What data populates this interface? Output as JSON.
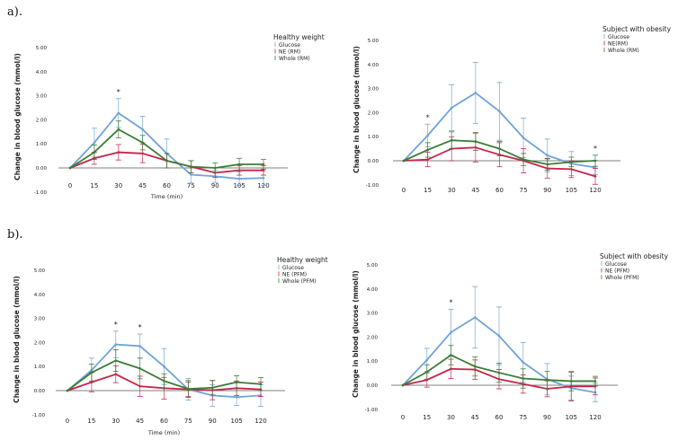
{
  "panel_labels": [
    "a).",
    "b)."
  ],
  "colors": {
    "Glucose": "#6fa3d8",
    "NE": "#c8234a",
    "Whole": "#3a7d32",
    "axis": "#555555"
  },
  "chart_data": [
    {
      "type": "line",
      "legend_title": "Healthy weight",
      "legend_placement": "top-right",
      "xlabel": "Time (min)",
      "ylabel": "Change in blood glucose (mmol/l)",
      "x": [
        0,
        15,
        30,
        45,
        60,
        75,
        90,
        105,
        120
      ],
      "x_tick_labels": [
        "0",
        "15",
        "30",
        "45",
        "60",
        "75",
        "90",
        "105",
        "120"
      ],
      "y_tick_labels": [
        "5.00",
        "4.00",
        "3.00",
        "2.00",
        "1.00",
        "0.00",
        "-1.00"
      ],
      "ylim": [
        -1,
        5
      ],
      "grid": false,
      "asterisks_at": [
        30
      ],
      "asterisk": "*",
      "series": [
        {
          "name": "Glucose",
          "color_key": "Glucose",
          "values": [
            0,
            1.05,
            2.28,
            1.6,
            0.6,
            -0.28,
            -0.35,
            -0.45,
            -0.42
          ],
          "error": [
            0,
            0.6,
            0.6,
            0.55,
            0.6,
            0.35,
            0.25,
            0.28,
            0.3
          ]
        },
        {
          "name": "NE (RM)",
          "color_key": "NE",
          "values": [
            0,
            0.4,
            0.65,
            0.6,
            0.3,
            0.05,
            -0.2,
            -0.1,
            -0.1
          ],
          "error": [
            0,
            0.25,
            0.32,
            0.38,
            0.3,
            0.25,
            0.2,
            0.2,
            0.2
          ]
        },
        {
          "name": "Whole (RM)",
          "color_key": "Whole",
          "values": [
            0,
            0.65,
            1.6,
            1.05,
            0.3,
            0.05,
            0,
            0.15,
            0.15
          ],
          "error": [
            0,
            0.3,
            0.35,
            0.3,
            0.3,
            0.25,
            0.2,
            0.25,
            0.2
          ]
        }
      ]
    },
    {
      "type": "line",
      "legend_title": "Subject with obesity",
      "legend_placement": "top-right",
      "xlabel": "",
      "ylabel": "Change in blood glucose (mmol/l)",
      "x": [
        0,
        15,
        30,
        45,
        60,
        75,
        90,
        105,
        120
      ],
      "x_tick_labels": [
        "0",
        "15",
        "30",
        "45",
        "60",
        "75",
        "90",
        "105",
        "120"
      ],
      "y_tick_labels": [
        "5.00",
        "4.00",
        "3.00",
        "2.00",
        "1.00",
        "0.00",
        "-1.00"
      ],
      "ylim": [
        -1,
        5
      ],
      "grid": false,
      "asterisks_at": [
        15,
        120
      ],
      "asterisk": "*",
      "series": [
        {
          "name": "Glucose",
          "color_key": "Glucose",
          "values": [
            0,
            1.05,
            2.2,
            2.82,
            2.05,
            0.95,
            0.22,
            -0.12,
            -0.28
          ],
          "error": [
            0,
            0.47,
            0.95,
            1.27,
            1.2,
            0.82,
            0.68,
            0.5,
            0.3
          ]
        },
        {
          "name": "NE(RM)",
          "color_key": "NE",
          "values": [
            0,
            0.05,
            0.5,
            0.55,
            0.25,
            0,
            -0.32,
            -0.35,
            -0.65
          ],
          "error": [
            0,
            0.3,
            0.5,
            0.6,
            0.5,
            0.5,
            0.4,
            0.35,
            0.33
          ]
        },
        {
          "name": "Whole (RM)",
          "color_key": "Whole",
          "values": [
            0,
            0.45,
            0.85,
            0.8,
            0.5,
            0.05,
            -0.15,
            -0.05,
            0
          ],
          "error": [
            0,
            0.3,
            0.35,
            0.37,
            0.3,
            0.25,
            0.25,
            0.2,
            0.23
          ]
        }
      ]
    },
    {
      "type": "line",
      "legend_title": "Healthy weight",
      "legend_placement": "top-right",
      "xlabel": "Time (min)",
      "ylabel": "Change in blood glucose (mmol/l)",
      "x": [
        0,
        15,
        30,
        45,
        60,
        75,
        90,
        105,
        120
      ],
      "x_tick_labels": [
        "0",
        "15",
        "30",
        "45",
        "60",
        "75",
        "90",
        "105",
        "120"
      ],
      "y_tick_labels": [
        "5.00",
        "4.00",
        "3.00",
        "2.00",
        "1.00",
        "0.00",
        "-1.00"
      ],
      "ylim": [
        -1,
        5
      ],
      "grid": false,
      "asterisks_at": [
        30,
        45
      ],
      "asterisk": "*",
      "series": [
        {
          "name": "Glucose",
          "color_key": "Glucose",
          "values": [
            0,
            0.85,
            1.92,
            1.85,
            1.0,
            0.05,
            -0.2,
            -0.27,
            -0.2
          ],
          "error": [
            0,
            0.5,
            0.55,
            0.5,
            0.75,
            0.45,
            0.45,
            0.35,
            0.45
          ]
        },
        {
          "name": "NE (PFM)",
          "color_key": "NE",
          "values": [
            0,
            0.35,
            0.68,
            0.18,
            0.1,
            0.05,
            0.02,
            0.1,
            0.05
          ],
          "error": [
            0,
            0.4,
            0.35,
            0.42,
            0.45,
            0.3,
            0.4,
            0.3,
            0.3
          ]
        },
        {
          "name": "Whole (PFM)",
          "color_key": "Whole",
          "values": [
            0,
            0.75,
            1.25,
            0.92,
            0.4,
            0.07,
            0.12,
            0.35,
            0.27
          ],
          "error": [
            0,
            0.35,
            0.45,
            0.43,
            0.3,
            0.35,
            0.3,
            0.27,
            0.27
          ]
        }
      ]
    },
    {
      "type": "line",
      "legend_title": "Subject with obesity",
      "legend_placement": "top-right",
      "xlabel": "",
      "ylabel": "Change in blood glucose (mmol/l)",
      "x": [
        0,
        15,
        30,
        45,
        60,
        75,
        90,
        105,
        120
      ],
      "x_tick_labels": [
        "0",
        "15",
        "30",
        "45",
        "60",
        "75",
        "90",
        "105",
        "120"
      ],
      "y_tick_labels": [
        "5.00",
        "4.00",
        "3.00",
        "2.00",
        "1.00",
        "0.00",
        "-1.00"
      ],
      "ylim": [
        -1,
        5
      ],
      "grid": false,
      "asterisks_at": [
        30
      ],
      "asterisk": "*",
      "series": [
        {
          "name": "Glucose",
          "color_key": "Glucose",
          "values": [
            0,
            1.05,
            2.2,
            2.82,
            2.05,
            0.95,
            0.25,
            -0.12,
            -0.3
          ],
          "error": [
            0,
            0.48,
            0.95,
            1.28,
            1.2,
            0.83,
            0.65,
            0.5,
            0.38
          ]
        },
        {
          "name": "NE (PFM)",
          "color_key": "NE",
          "values": [
            0,
            0.22,
            0.68,
            0.65,
            0.25,
            0.05,
            -0.15,
            -0.05,
            -0.05
          ],
          "error": [
            0,
            0.3,
            0.4,
            0.4,
            0.4,
            0.38,
            0.33,
            0.6,
            0.35
          ]
        },
        {
          "name": "Whole (PFM)",
          "color_key": "Whole",
          "values": [
            0,
            0.55,
            1.25,
            0.78,
            0.52,
            0.28,
            0.22,
            0.17,
            0.17
          ],
          "error": [
            0,
            0.3,
            0.4,
            0.4,
            0.4,
            0.4,
            0.35,
            0.4,
            0.2
          ]
        }
      ]
    }
  ]
}
